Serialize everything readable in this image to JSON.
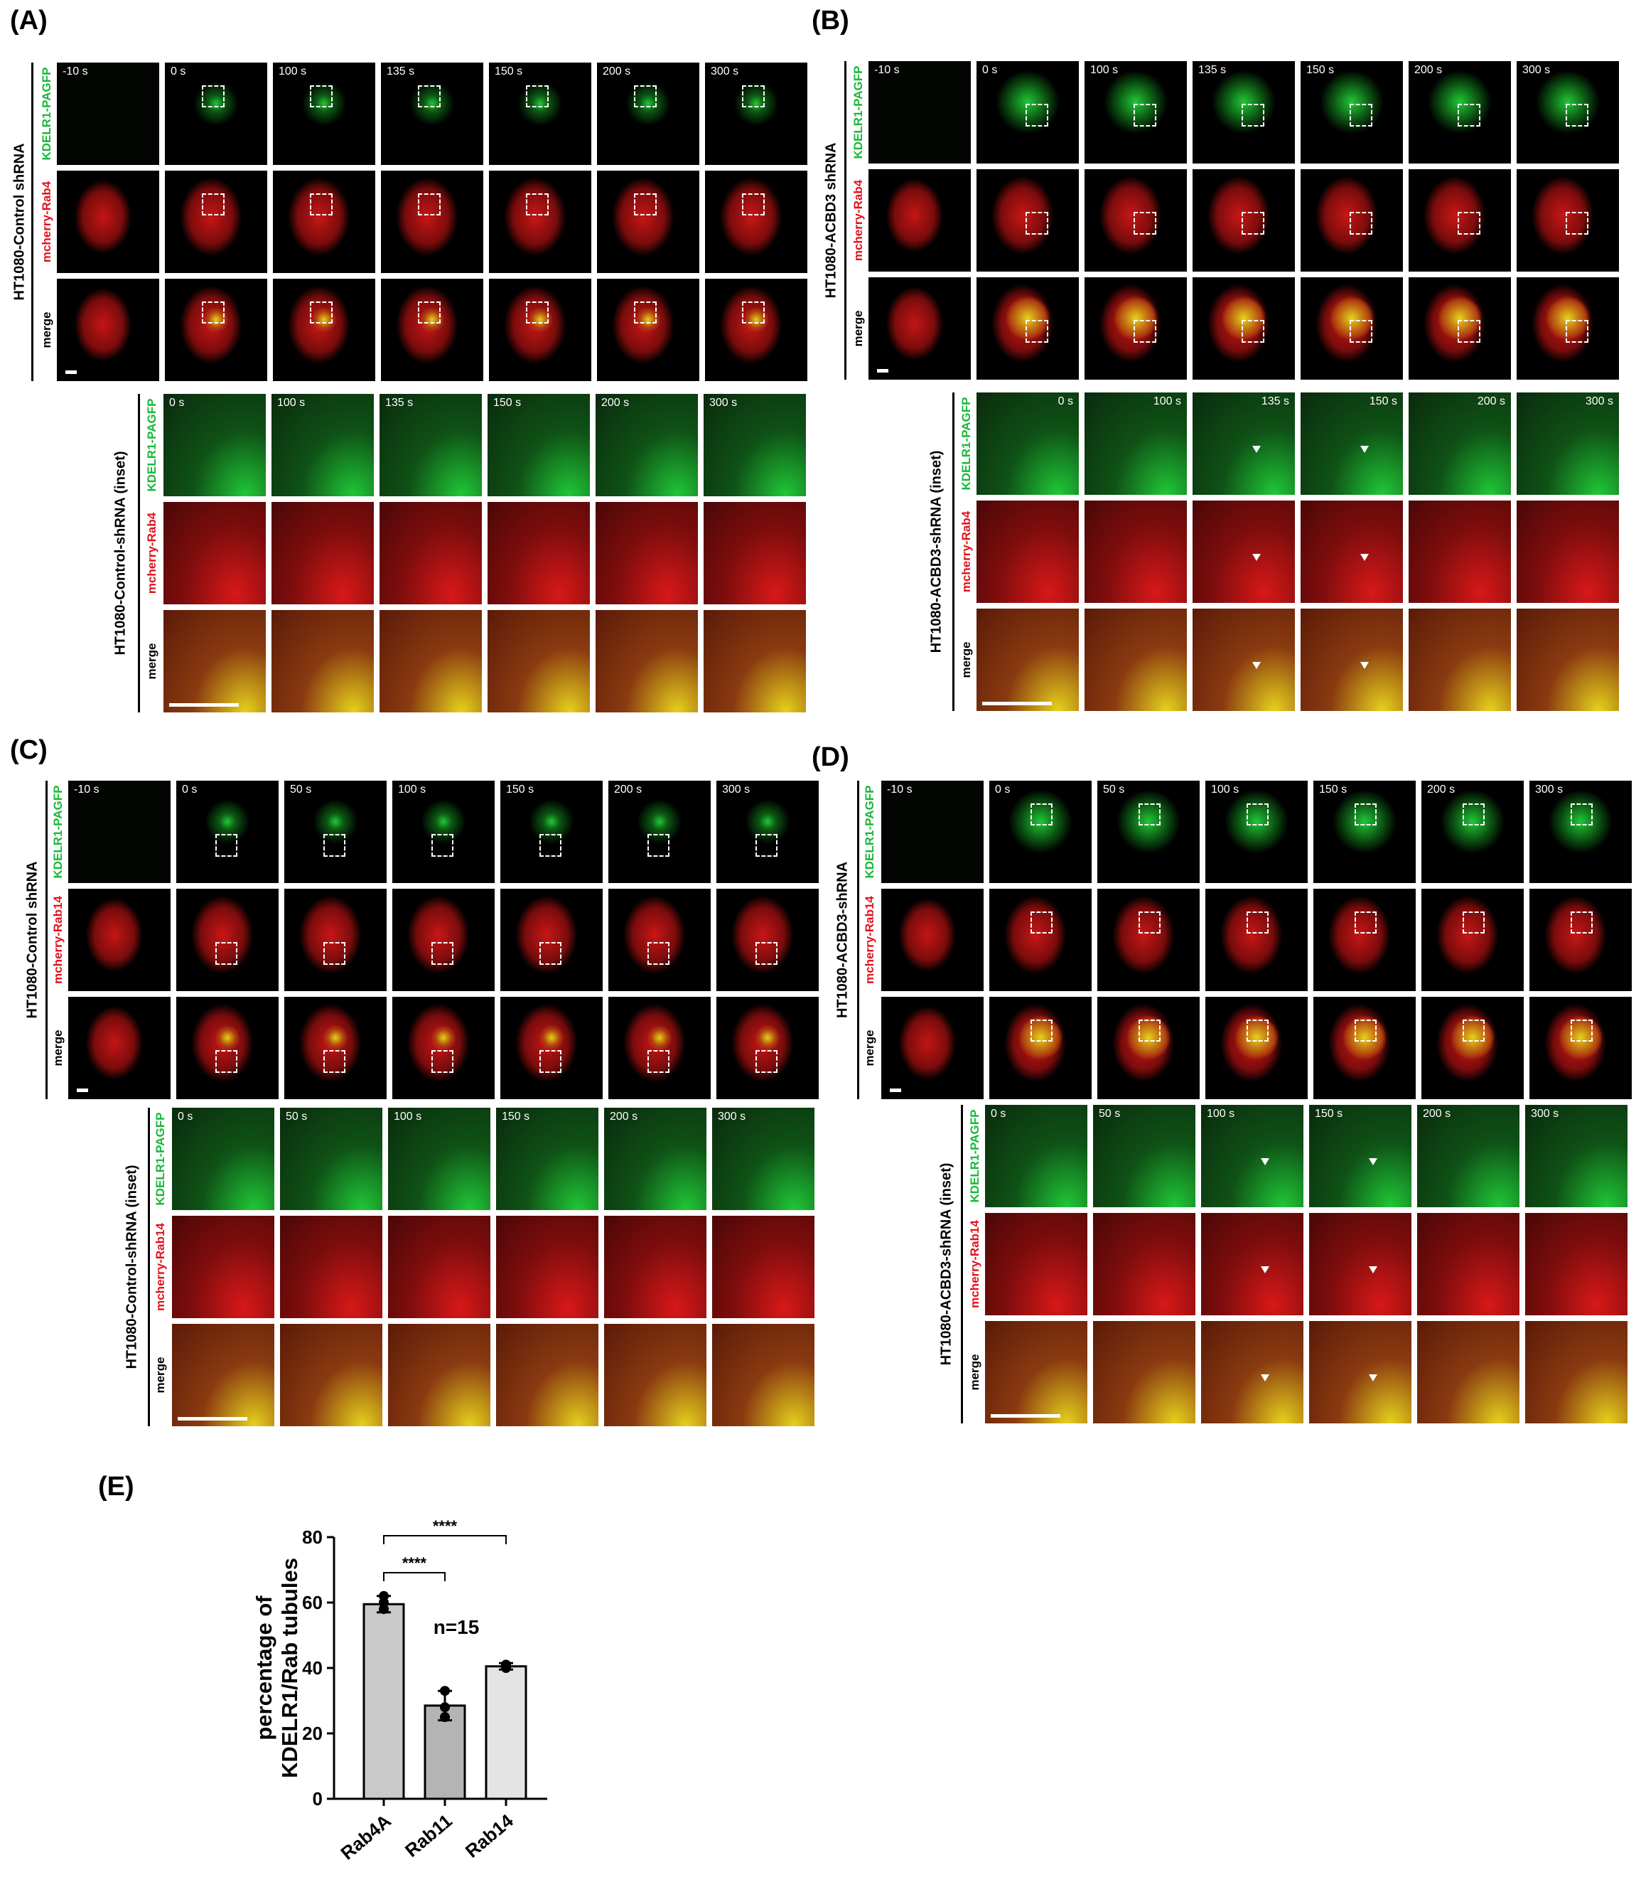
{
  "letters": {
    "A": "(A)",
    "B": "(B)",
    "C": "(C)",
    "D": "(D)",
    "E": "(E)"
  },
  "channels": {
    "green": "KDELR1-PAGFP",
    "rab4": "mcherry-Rab4",
    "rab14": "mcherry-Rab14",
    "merge": "merge"
  },
  "groups": {
    "a_top": "HT1080-Control shRNA",
    "a_bottom": "HT1080-Control-shRNA (inset)",
    "b_top": "HT1080-ACBD3 shRNA",
    "b_bottom": "HT1080-ACBD3-shRNA (inset)",
    "c_top": "HT1080-Control shRNA",
    "c_bottom": "HT1080-Control-shRNA (inset)",
    "d_top": "HT1080-ACBD3-shRNA",
    "d_bottom": "HT1080-ACBD3-shRNA (inset)"
  },
  "times": {
    "ab_top": [
      "-10 s",
      "0 s",
      "100 s",
      "135 s",
      "150 s",
      "200 s",
      "300 s"
    ],
    "ab_inset": [
      "0 s",
      "100 s",
      "135 s",
      "150 s",
      "200 s",
      "300 s"
    ],
    "cd_top": [
      "-10 s",
      "0 s",
      "50 s",
      "100 s",
      "150 s",
      "200 s",
      "300 s"
    ],
    "cd_inset": [
      "0 s",
      "50 s",
      "100 s",
      "150 s",
      "200 s",
      "300 s"
    ]
  },
  "colors": {
    "green_signal": "#20c837",
    "red_signal": "#d81818",
    "merge_signal": "#e6d21c",
    "bar_fill": "#c8c8c8"
  },
  "chart_data": {
    "type": "bar",
    "categories": [
      "Rab4A",
      "Rab11",
      "Rab14"
    ],
    "values": [
      59.5,
      28.5,
      40.5
    ],
    "errors": [
      2.5,
      4.5,
      1.0
    ],
    "points": [
      [
        62,
        58,
        60
      ],
      [
        33,
        28,
        25
      ],
      [
        41,
        40,
        40.5
      ]
    ],
    "bar_colors": [
      "#c9c9c9",
      "#b4b4b4",
      "#e4e4e4"
    ],
    "ylabel": "percentage of\nKDELR1/Rab tubules",
    "ylabel_line1": "percentage of",
    "ylabel_line2": "KDELR1/Rab tubules",
    "ylim": [
      0,
      80
    ],
    "yticks": [
      0,
      20,
      40,
      60,
      80
    ],
    "annotation": "n=15",
    "significance": [
      {
        "from": "Rab4A",
        "to": "Rab11",
        "label": "****"
      },
      {
        "from": "Rab4A",
        "to": "Rab14",
        "label": "****"
      }
    ],
    "grid": false,
    "legend": "none"
  }
}
